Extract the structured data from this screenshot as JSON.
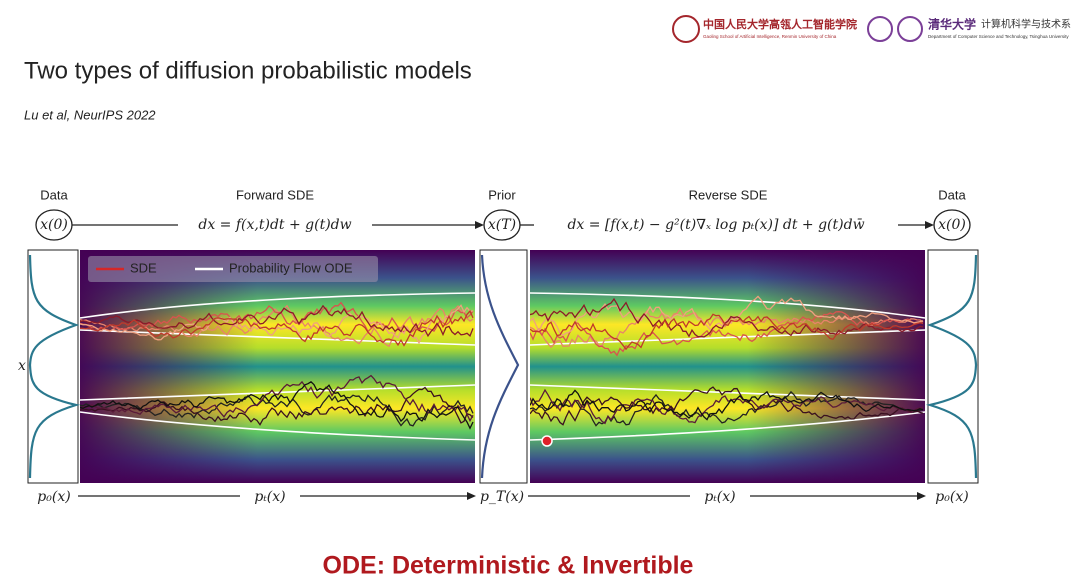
{
  "header": {
    "logo1_title": "中国人民大学高瓴人工智能学院",
    "logo1_subtitle": "Gaoling School of Artificial Intelligence, Renmin University of China",
    "logo2_title": "清华大学",
    "logo2_dept": "计算机科学与技术系",
    "logo2_subtitle": "Department of Computer Science and Technology, Tsinghua University"
  },
  "title": "Two types of diffusion probabilistic models",
  "citation": "Lu et al, NeurIPS 2022",
  "figure": {
    "top_labels": [
      "Data",
      "Forward SDE",
      "Prior",
      "Reverse SDE",
      "Data"
    ],
    "math": [
      "x(0)",
      "dx = f(x,t)dt + g(t)dw",
      "x(T)",
      "dx = [f(x,t) − g²(t)∇ₓ log pₜ(x)] dt + g(t)dw̄",
      "x(0)"
    ],
    "legend": [
      "SDE",
      "Probability Flow ODE"
    ],
    "axis_label": "x",
    "bottom_labels": [
      "p₀(x)",
      "pₜ(x)",
      "p_T(x)",
      "pₜ(x)",
      "p₀(x)"
    ]
  },
  "caption": "ODE: Deterministic & Invertible"
}
